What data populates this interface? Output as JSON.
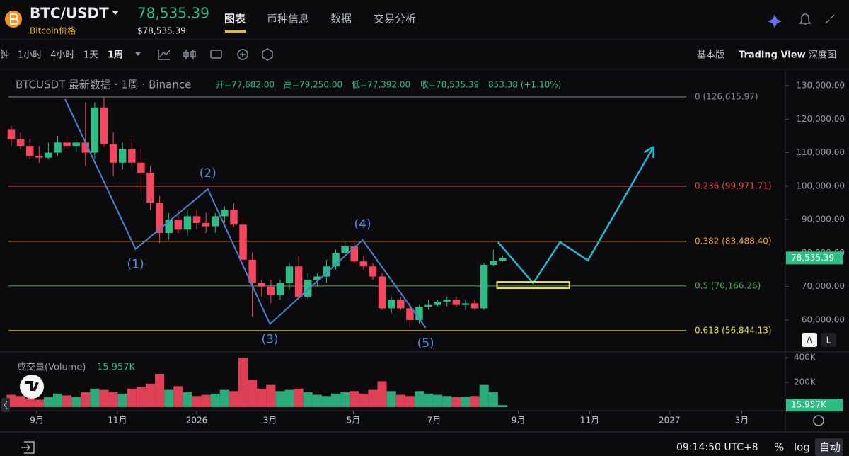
{
  "header": {
    "pair": "BTC/USDT",
    "subtitle": "Bitcoin价格",
    "price": "78,535.39",
    "price_usd": "$78,535.39",
    "tabs": [
      "图表",
      "币种信息",
      "数据",
      "交易分析"
    ]
  },
  "toolbar": {
    "intervals": [
      "钟",
      "1小时",
      "4小时",
      "1天",
      "1周"
    ],
    "views": [
      "基本版",
      "Trading View",
      "深度图"
    ]
  },
  "legend": {
    "symbol": "BTCUSDT 最新数据 · 1周 · Binance",
    "open": "开=77,682.00",
    "high": "高=79,250.00",
    "low": "低=77,392.00",
    "close": "收=78,535.39",
    "change": "853.38 (+1.10%)"
  },
  "footer": {
    "time": "09:14:50 UTC+8",
    "buttons": [
      "%",
      "log",
      "自动"
    ],
    "scale_buttons": [
      "A",
      "L"
    ]
  },
  "chart_data": {
    "type": "candlestick",
    "up_color": "#2ebd85",
    "down_color": "#f6465d",
    "xlim": [
      -1.22,
      83.5
    ],
    "xticks": [
      {
        "value": 2.75,
        "label": "9月"
      },
      {
        "value": 11.45,
        "label": "11月"
      },
      {
        "value": 20,
        "label": "2026"
      },
      {
        "value": 27.9,
        "label": "3月"
      },
      {
        "value": 36.9,
        "label": "5月"
      },
      {
        "value": 45.6,
        "label": "7月"
      },
      {
        "value": 54.7,
        "label": "9月"
      },
      {
        "value": 62.4,
        "label": "11月"
      },
      {
        "value": 71,
        "label": "2027"
      },
      {
        "value": 78.8,
        "label": "3月"
      }
    ],
    "ylim": [
      50900,
      132960
    ],
    "yticks": [
      {
        "value": 60000,
        "label": "60,000.00"
      },
      {
        "value": 70000,
        "label": "70,000.00"
      },
      {
        "value": 80000,
        "label": "80,000.00"
      },
      {
        "value": 90000,
        "label": "90,000.00"
      },
      {
        "value": 100000,
        "label": "100,000.00"
      },
      {
        "value": 110000,
        "label": "110,000.00"
      },
      {
        "value": 120000,
        "label": "120,000.00"
      },
      {
        "value": 130000,
        "label": "130,000.00"
      }
    ],
    "candles": {
      "open": [
        117000,
        114000,
        112000,
        109000,
        108500,
        110000,
        113000,
        112000,
        113000,
        110000,
        123500,
        112500,
        107000,
        111000,
        107000,
        104000,
        95000,
        86000,
        90000,
        87000,
        91000,
        89000,
        88000,
        91000,
        93000,
        88500,
        78000,
        71000,
        70000,
        67500,
        71000,
        76000,
        67000,
        72000,
        73000,
        76000,
        80000,
        82000,
        77500,
        76000,
        73000,
        63500,
        66000,
        63500,
        60000,
        64000,
        64500,
        65500,
        66000,
        64500,
        65000,
        63500,
        76500,
        77682
      ],
      "high": [
        118000,
        116000,
        114000,
        112000,
        113000,
        115000,
        115000,
        114000,
        125000,
        125000,
        126615.97,
        116000,
        113000,
        114000,
        111000,
        106000,
        97000,
        92000,
        93000,
        93000,
        93000,
        92000,
        92000,
        94000,
        95000,
        91000,
        80000,
        72000,
        72000,
        72000,
        77000,
        79000,
        74000,
        74000,
        78000,
        81000,
        84000,
        84000,
        79000,
        77000,
        74000,
        67000,
        67000,
        65000,
        64500,
        66000,
        66000,
        67000,
        67000,
        66000,
        66000,
        77000,
        81000,
        79250
      ],
      "low": [
        112000,
        111000,
        108000,
        107000,
        108000,
        109000,
        111000,
        110000,
        106000,
        108000,
        112000,
        103000,
        105000,
        106000,
        98000,
        93000,
        83000,
        84000,
        86000,
        85000,
        87000,
        86000,
        86000,
        89000,
        88000,
        76000,
        61000,
        67000,
        65000,
        66000,
        69000,
        66000,
        66000,
        70000,
        71000,
        75000,
        79000,
        77000,
        75000,
        72000,
        63000,
        62000,
        63000,
        58000,
        59000,
        63000,
        64000,
        64000,
        64000,
        63000,
        63000,
        63000,
        76000,
        77392
      ],
      "close": [
        114000,
        112000,
        109000,
        108500,
        110000,
        113000,
        112000,
        113000,
        110000,
        123500,
        112500,
        107000,
        111000,
        107000,
        104000,
        95000,
        86000,
        90000,
        87000,
        91000,
        89000,
        88000,
        91000,
        93000,
        88500,
        78000,
        71000,
        70000,
        67500,
        71000,
        76000,
        67000,
        72000,
        73000,
        76000,
        80000,
        82000,
        77500,
        76000,
        73000,
        63500,
        66000,
        63500,
        60000,
        64000,
        64500,
        65500,
        66000,
        64500,
        65000,
        63500,
        76500,
        77682,
        78535.39
      ]
    },
    "fib_levels": [
      {
        "label": "0 (126,615.97)",
        "value": 126615.97,
        "color": "#8a8d93"
      },
      {
        "label": "0.236 (99,971.71)",
        "value": 99971.71,
        "color": "#e84848"
      },
      {
        "label": "0.382 (83,488.40)",
        "value": 83488.4,
        "color": "#f0a030"
      },
      {
        "label": "0.5 (70,166.26)",
        "value": 70166.26,
        "color": "#4caf50"
      },
      {
        "label": "0.618 (56,844.13)",
        "value": 56844.13,
        "color": "#f0e040"
      }
    ],
    "waves": {
      "color": "#4a80d4",
      "points": [
        {
          "x": 5.8,
          "y": 126000
        },
        {
          "x": 13.4,
          "y": 81200,
          "label": "(1)"
        },
        {
          "x": 21.2,
          "y": 99100,
          "label": "(2)"
        },
        {
          "x": 27.9,
          "y": 58800,
          "label": "(3)"
        },
        {
          "x": 37.9,
          "y": 83900,
          "label": "(4)"
        },
        {
          "x": 44.7,
          "y": 57700,
          "label": "(5)"
        }
      ]
    },
    "projection": {
      "color": "#22b8d8",
      "points": [
        {
          "x": 52.5,
          "y": 83300
        },
        {
          "x": 56.3,
          "y": 71000
        },
        {
          "x": 59.2,
          "y": 83300
        },
        {
          "x": 62.2,
          "y": 77800
        },
        {
          "x": 69.3,
          "y": 111800
        }
      ]
    },
    "zone": {
      "x": [
        52.4,
        60.2
      ],
      "y": [
        69500,
        71400
      ],
      "color": "#f0e040"
    },
    "volume": {
      "title": "成交量(Volume)",
      "value_label": "15.957K",
      "values": [
        100,
        90,
        70,
        60,
        80,
        110,
        95,
        85,
        120,
        150,
        140,
        120,
        110,
        150,
        160,
        190,
        270,
        140,
        170,
        120,
        90,
        100,
        110,
        140,
        130,
        400,
        220,
        150,
        180,
        130,
        140,
        150,
        120,
        100,
        90,
        110,
        120,
        130,
        110,
        140,
        210,
        130,
        100,
        90,
        130,
        110,
        100,
        90,
        80,
        85,
        90,
        180,
        120,
        15.957
      ],
      "ylim": [
        0,
        430
      ],
      "yticks": [
        {
          "value": 200,
          "label": "200K"
        },
        {
          "value": 400,
          "label": "400K"
        }
      ]
    }
  }
}
